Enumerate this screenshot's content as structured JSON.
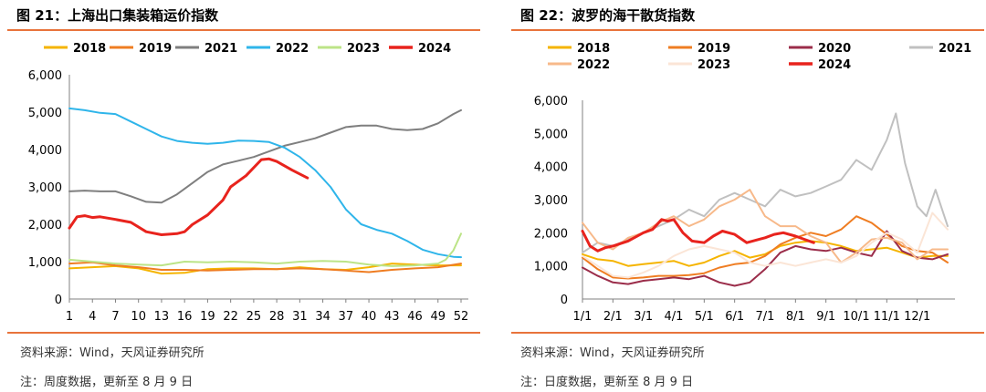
{
  "left": {
    "title": "图 21：上海出口集装箱运价指数",
    "source": "资料来源：Wind，天风证券研究所",
    "note": "注：周度数据，更新至 8 月 9 日"
  },
  "right": {
    "title": "图 22：波罗的海干散货指数",
    "source": "资料来源：Wind，天风证券研究所",
    "note": "注：日度数据，更新至 8 月 9 日"
  },
  "chart_data": [
    {
      "type": "line",
      "title": "图 21：上海出口集装箱运价指数",
      "xlabel": "",
      "ylabel": "",
      "x_ticks": [
        1,
        4,
        7,
        10,
        13,
        16,
        19,
        22,
        25,
        28,
        31,
        34,
        37,
        40,
        43,
        46,
        49,
        52
      ],
      "xlim": [
        1,
        52
      ],
      "ylim": [
        0,
        6000
      ],
      "y_ticks": [
        0,
        1000,
        2000,
        3000,
        4000,
        5000,
        6000
      ],
      "legend_position": "top",
      "series": [
        {
          "name": "2018",
          "color": "#f5b400",
          "x": [
            1,
            4,
            7,
            10,
            13,
            16,
            19,
            22,
            25,
            28,
            31,
            34,
            37,
            40,
            43,
            46,
            49,
            52
          ],
          "values": [
            820,
            850,
            880,
            820,
            680,
            700,
            800,
            820,
            820,
            800,
            850,
            800,
            780,
            850,
            950,
            920,
            900,
            900
          ]
        },
        {
          "name": "2019",
          "color": "#ef7d22",
          "x": [
            1,
            4,
            7,
            10,
            13,
            16,
            19,
            22,
            25,
            28,
            31,
            34,
            37,
            40,
            43,
            46,
            49,
            52
          ],
          "values": [
            950,
            980,
            900,
            850,
            780,
            780,
            760,
            780,
            800,
            800,
            820,
            800,
            760,
            720,
            780,
            820,
            850,
            950
          ]
        },
        {
          "name": "2021",
          "color": "#7f7f7f",
          "x": [
            1,
            3,
            5,
            7,
            9,
            11,
            13,
            15,
            17,
            19,
            21,
            23,
            25,
            27,
            29,
            31,
            33,
            35,
            37,
            39,
            41,
            43,
            45,
            47,
            49,
            51,
            52
          ],
          "values": [
            2880,
            2900,
            2880,
            2880,
            2750,
            2600,
            2580,
            2800,
            3100,
            3400,
            3600,
            3700,
            3800,
            3950,
            4100,
            4200,
            4300,
            4450,
            4600,
            4640,
            4640,
            4550,
            4520,
            4550,
            4700,
            4950,
            5050
          ]
        },
        {
          "name": "2022",
          "color": "#2fb5ea",
          "x": [
            1,
            3,
            5,
            7,
            9,
            11,
            13,
            15,
            17,
            19,
            21,
            23,
            25,
            27,
            29,
            31,
            33,
            35,
            37,
            39,
            41,
            43,
            45,
            47,
            49,
            51,
            52
          ],
          "values": [
            5100,
            5050,
            4980,
            4950,
            4750,
            4550,
            4350,
            4230,
            4180,
            4150,
            4180,
            4240,
            4230,
            4200,
            4050,
            3800,
            3450,
            3000,
            2400,
            2000,
            1850,
            1750,
            1550,
            1320,
            1200,
            1130,
            1120
          ]
        },
        {
          "name": "2023",
          "color": "#bce487",
          "x": [
            1,
            4,
            7,
            10,
            13,
            16,
            19,
            22,
            25,
            28,
            31,
            34,
            37,
            40,
            43,
            46,
            49,
            50,
            51,
            52
          ],
          "values": [
            1050,
            1000,
            950,
            920,
            900,
            1000,
            980,
            1000,
            980,
            950,
            1000,
            1020,
            1000,
            920,
            880,
            900,
            950,
            1050,
            1300,
            1750
          ]
        },
        {
          "name": "2024",
          "color": "#e8231d",
          "x": [
            1,
            2,
            3,
            4,
            5,
            7,
            9,
            11,
            13,
            15,
            16,
            17,
            19,
            21,
            22,
            24,
            26,
            27,
            28,
            30,
            32
          ],
          "values": [
            1900,
            2200,
            2230,
            2180,
            2200,
            2130,
            2050,
            1800,
            1720,
            1750,
            1800,
            1990,
            2250,
            2650,
            3000,
            3300,
            3730,
            3750,
            3680,
            3450,
            3240
          ]
        }
      ]
    },
    {
      "type": "line",
      "title": "图 22：波罗的海干散货指数",
      "xlabel": "",
      "ylabel": "",
      "x_ticks": [
        "1/1",
        "2/1",
        "3/1",
        "4/1",
        "5/1",
        "6/1",
        "7/1",
        "8/1",
        "9/1",
        "10/1",
        "11/1",
        "12/1"
      ],
      "xlim": [
        0,
        12
      ],
      "ylim": [
        0,
        6000
      ],
      "y_ticks": [
        0,
        1000,
        2000,
        3000,
        4000,
        5000,
        6000
      ],
      "legend_position": "top",
      "series": [
        {
          "name": "2018",
          "color": "#f5b400",
          "x": [
            0,
            0.5,
            1,
            1.5,
            2,
            2.5,
            3,
            3.5,
            4,
            4.5,
            5,
            5.5,
            6,
            6.5,
            7,
            7.5,
            8,
            8.5,
            9,
            9.5,
            10,
            10.5,
            11,
            11.5,
            12
          ],
          "values": [
            1350,
            1200,
            1150,
            1000,
            1050,
            1100,
            1150,
            1000,
            1100,
            1300,
            1450,
            1250,
            1350,
            1600,
            1700,
            1750,
            1700,
            1600,
            1450,
            1500,
            1550,
            1400,
            1250,
            1300,
            1300
          ]
        },
        {
          "name": "2019",
          "color": "#ef7d22",
          "x": [
            0,
            0.5,
            1,
            1.5,
            2,
            2.5,
            3,
            3.5,
            4,
            4.5,
            5,
            5.5,
            6,
            6.5,
            7,
            7.5,
            8,
            8.5,
            9,
            9.5,
            10,
            10.5,
            11,
            11.5,
            12
          ],
          "values": [
            1250,
            900,
            650,
            620,
            650,
            700,
            700,
            720,
            780,
            950,
            1050,
            1100,
            1300,
            1650,
            1850,
            2000,
            1900,
            2100,
            2500,
            2300,
            1950,
            1600,
            1450,
            1400,
            1100
          ]
        },
        {
          "name": "2020",
          "color": "#9b2d4a",
          "x": [
            0,
            0.5,
            1,
            1.5,
            2,
            2.5,
            3,
            3.5,
            4,
            4.5,
            5,
            5.5,
            6,
            6.5,
            7,
            7.5,
            8,
            8.5,
            9,
            9.5,
            10,
            10.5,
            11,
            11.5,
            12
          ],
          "values": [
            950,
            700,
            500,
            450,
            550,
            600,
            650,
            600,
            700,
            500,
            400,
            500,
            900,
            1400,
            1600,
            1500,
            1450,
            1550,
            1400,
            1300,
            2050,
            1450,
            1250,
            1200,
            1350
          ]
        },
        {
          "name": "2021",
          "color": "#c0c0c0",
          "x": [
            0,
            0.5,
            1,
            1.5,
            2,
            2.5,
            3,
            3.5,
            4,
            4.5,
            5,
            5.5,
            6,
            6.5,
            7,
            7.5,
            8,
            8.5,
            9,
            9.5,
            10,
            10.3,
            10.6,
            11,
            11.3,
            11.6,
            12
          ],
          "values": [
            1400,
            1700,
            1600,
            1800,
            2000,
            2200,
            2400,
            2700,
            2500,
            3000,
            3200,
            3000,
            2800,
            3300,
            3100,
            3200,
            3400,
            3600,
            4200,
            3900,
            4800,
            5600,
            4100,
            2800,
            2500,
            3300,
            2200
          ]
        },
        {
          "name": "2022",
          "color": "#f7b98a",
          "x": [
            0,
            0.5,
            1,
            1.5,
            2,
            2.5,
            3,
            3.5,
            4,
            4.5,
            5,
            5.5,
            6,
            6.5,
            7,
            7.5,
            8,
            8.5,
            9,
            9.5,
            10,
            10.5,
            11,
            11.5,
            12
          ],
          "values": [
            2300,
            1700,
            1500,
            1850,
            2000,
            2300,
            2500,
            2200,
            2400,
            2800,
            3000,
            3300,
            2500,
            2200,
            2200,
            1900,
            1700,
            1100,
            1400,
            1800,
            1850,
            1700,
            1200,
            1500,
            1500
          ]
        },
        {
          "name": "2023",
          "color": "#fbe5d6",
          "x": [
            0,
            0.5,
            1,
            1.5,
            2,
            2.5,
            3,
            3.5,
            4,
            4.5,
            5,
            5.5,
            6,
            6.5,
            7,
            7.5,
            8,
            8.5,
            9,
            9.5,
            10,
            10.5,
            11,
            11.5,
            12
          ],
          "values": [
            1300,
            1000,
            700,
            650,
            800,
            1000,
            1300,
            1500,
            1600,
            1500,
            1400,
            1100,
            1000,
            1100,
            1000,
            1100,
            1200,
            1100,
            1300,
            1700,
            2000,
            1800,
            1400,
            2600,
            2100
          ]
        },
        {
          "name": "2024",
          "color": "#e8231d",
          "x": [
            0,
            0.25,
            0.5,
            0.75,
            1,
            1.5,
            2,
            2.3,
            2.6,
            2.8,
            3,
            3.3,
            3.6,
            4,
            4.3,
            4.6,
            5,
            5.4,
            5.8,
            6,
            6.3,
            6.6,
            7,
            7.3,
            7.6
          ],
          "values": [
            2050,
            1600,
            1450,
            1550,
            1600,
            1750,
            2000,
            2100,
            2400,
            2350,
            2400,
            2000,
            1750,
            1700,
            1900,
            2050,
            1950,
            1700,
            1800,
            1850,
            1950,
            2000,
            1900,
            1800,
            1700
          ]
        }
      ]
    }
  ]
}
